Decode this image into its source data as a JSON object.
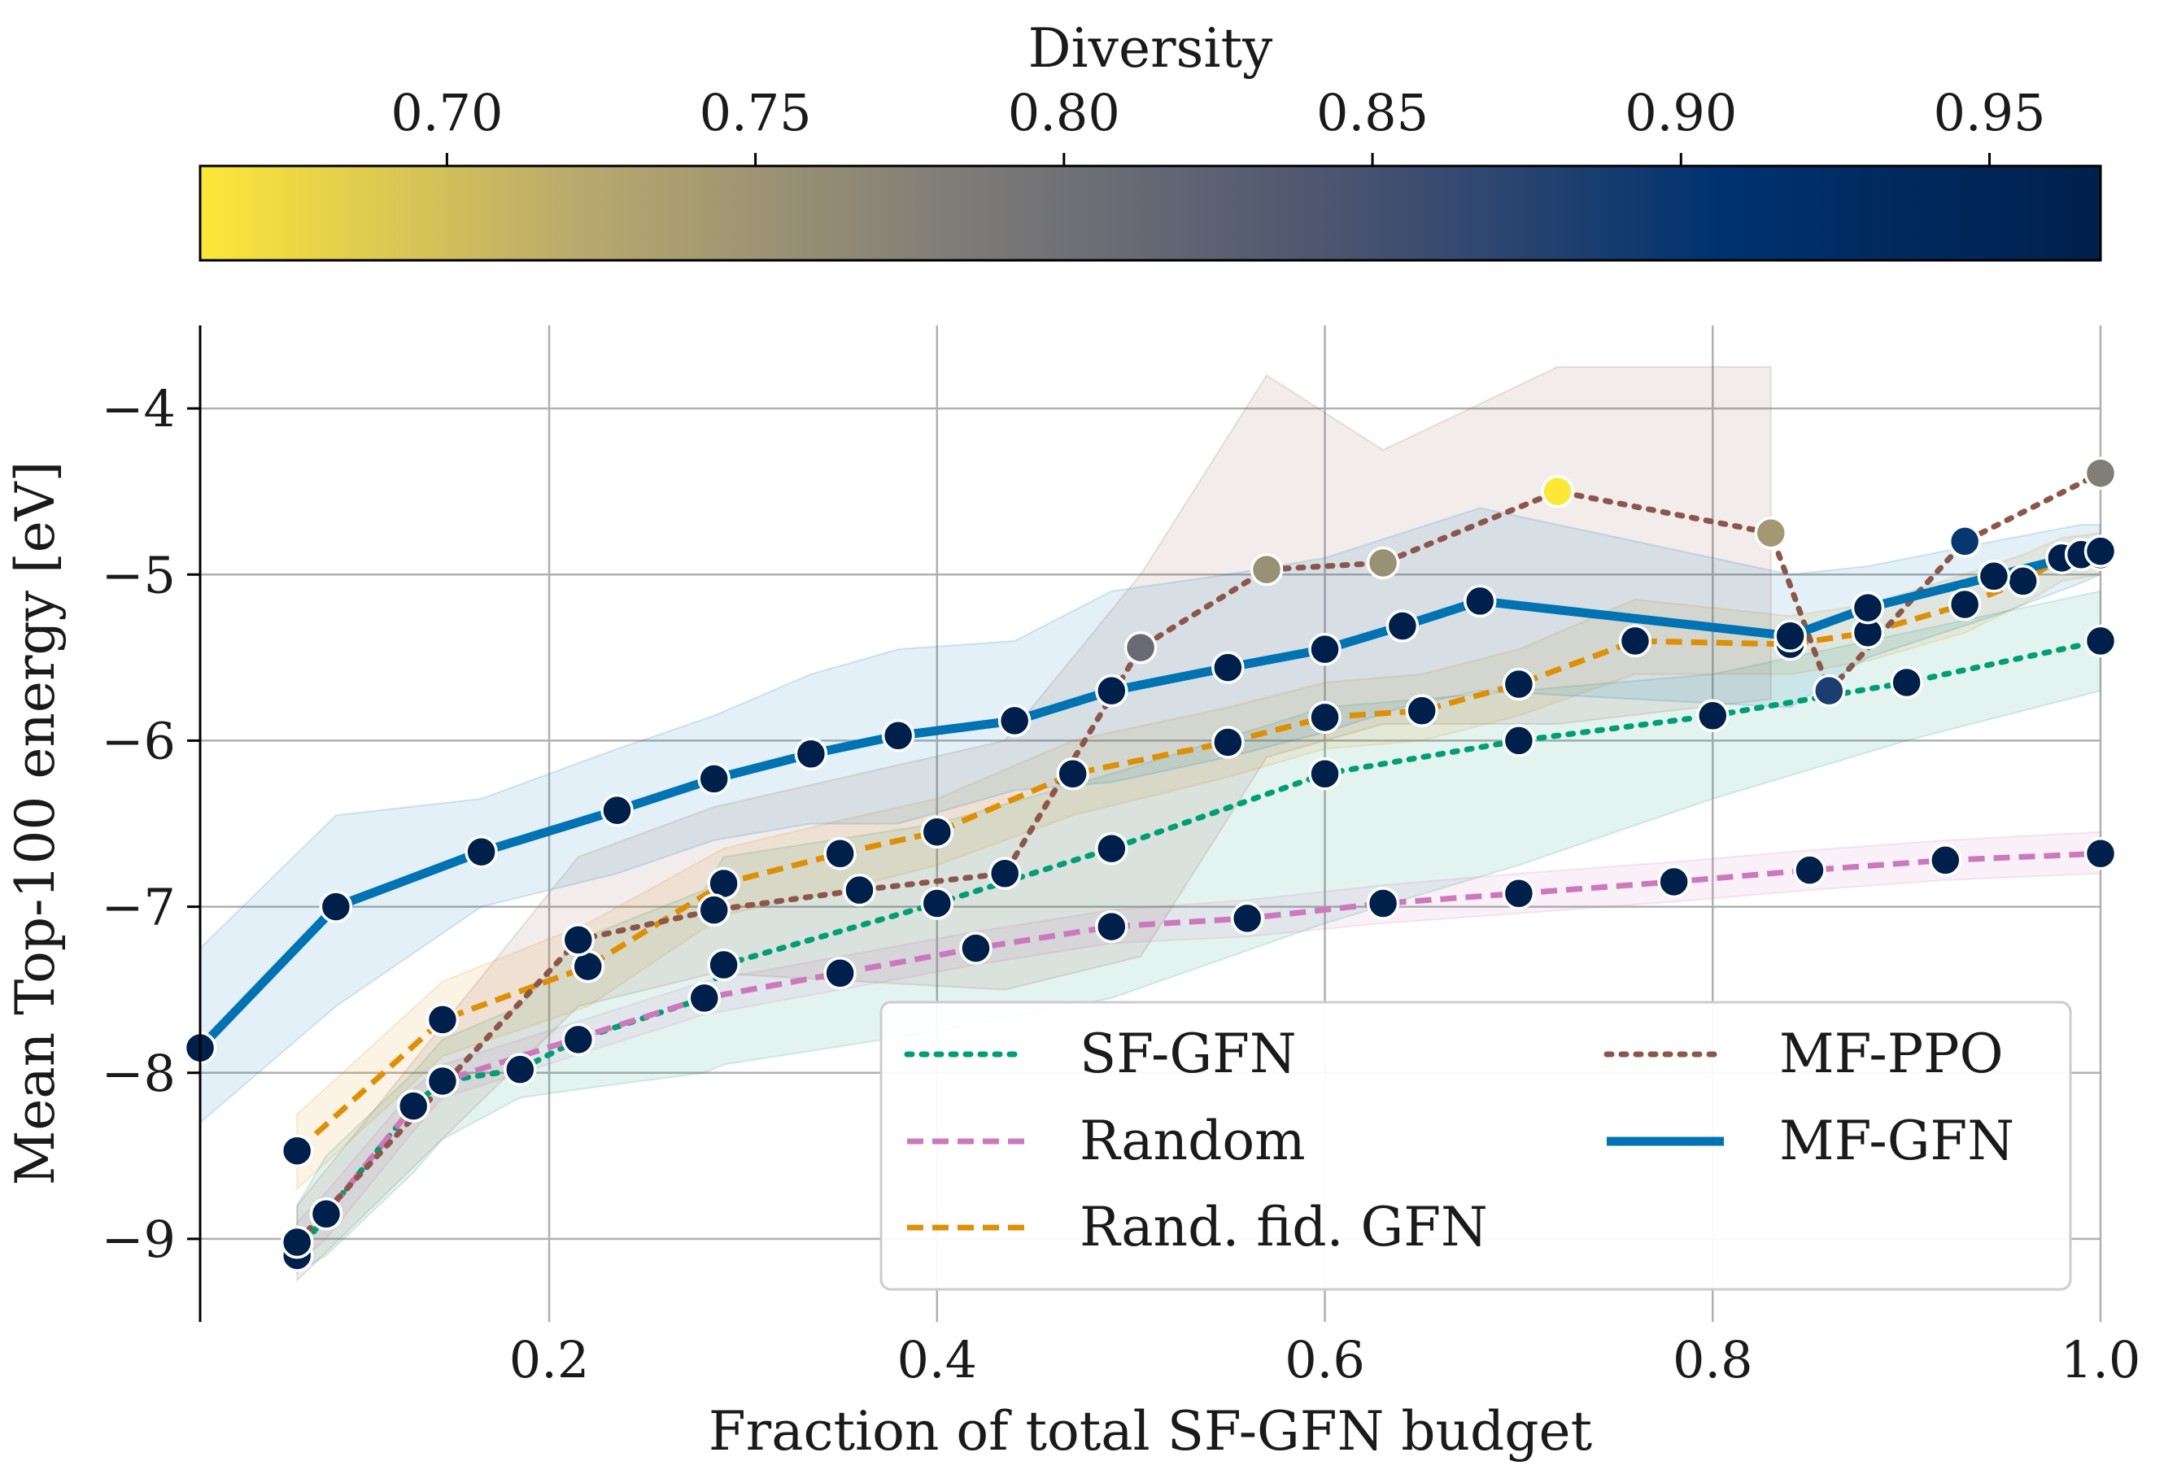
{
  "chart_data": {
    "type": "line",
    "xlabel": "Fraction of total SF-GFN budget",
    "ylabel": "Mean Top-100 energy [eV]",
    "xlim": [
      0.02,
      1.0
    ],
    "ylim": [
      -9.5,
      -3.5
    ],
    "grid": true,
    "x_ticks": [
      0.2,
      0.4,
      0.6,
      0.8,
      1.0
    ],
    "x_tick_labels": [
      "0.2",
      "0.4",
      "0.6",
      "0.8",
      "1.0"
    ],
    "y_ticks": [
      -9,
      -8,
      -7,
      -6,
      -5,
      -4
    ],
    "y_tick_labels": [
      "−9",
      "−8",
      "−7",
      "−6",
      "−5",
      "−4"
    ],
    "legend_position": "lower-right",
    "colorbar": {
      "title": "Diversity",
      "range": [
        0.66,
        0.968
      ],
      "ticks": [
        0.7,
        0.75,
        0.8,
        0.85,
        0.9,
        0.95
      ],
      "tick_labels": [
        "0.70",
        "0.75",
        "0.80",
        "0.85",
        "0.90",
        "0.95"
      ],
      "colormap": "cividis_reversed",
      "stops": [
        "#fde737",
        "#b9a96e",
        "#7e7c78",
        "#4b5470",
        "#00326f",
        "#00204c"
      ]
    },
    "series": [
      {
        "name": "SF-GFN",
        "color": "#029e73",
        "dash": "dot",
        "x": [
          0.07,
          0.085,
          0.13,
          0.145,
          0.185,
          0.215,
          0.28,
          0.29,
          0.4,
          0.49,
          0.6,
          0.7,
          0.8,
          0.9,
          1.0
        ],
        "y": [
          -9.1,
          -8.85,
          -8.2,
          -8.05,
          -7.98,
          -7.8,
          -7.55,
          -7.35,
          -6.98,
          -6.65,
          -6.2,
          -6.0,
          -5.85,
          -5.65,
          -5.4
        ],
        "band_upper": [
          -8.8,
          -8.5,
          -8.0,
          -7.8,
          -7.6,
          -7.2,
          -6.9,
          -6.7,
          -6.5,
          -6.2,
          -5.8,
          -5.7,
          -5.6,
          -5.35,
          -5.1
        ],
        "band_lower": [
          -9.2,
          -9.1,
          -8.6,
          -8.4,
          -8.15,
          -8.1,
          -8.0,
          -7.95,
          -7.75,
          -7.55,
          -7.1,
          -6.75,
          -6.35,
          -6.0,
          -5.7
        ],
        "diversity": [
          0.968,
          0.968,
          0.968,
          0.968,
          0.968,
          0.968,
          0.968,
          0.968,
          0.968,
          0.968,
          0.968,
          0.968,
          0.968,
          0.968,
          0.968
        ]
      },
      {
        "name": "Random",
        "color": "#cc78bc",
        "dash": "dash",
        "x": [
          0.07,
          0.085,
          0.13,
          0.145,
          0.28,
          0.35,
          0.42,
          0.49,
          0.56,
          0.63,
          0.7,
          0.78,
          0.85,
          0.92,
          1.0
        ],
        "y": [
          -9.02,
          -8.85,
          -8.2,
          -8.05,
          -7.55,
          -7.4,
          -7.25,
          -7.12,
          -7.07,
          -6.98,
          -6.92,
          -6.85,
          -6.78,
          -6.72,
          -6.68
        ],
        "band_upper": [
          -8.9,
          -8.72,
          -8.1,
          -7.95,
          -7.45,
          -7.3,
          -7.15,
          -7.02,
          -6.96,
          -6.87,
          -6.8,
          -6.73,
          -6.66,
          -6.6,
          -6.55
        ],
        "band_lower": [
          -9.15,
          -9.0,
          -8.35,
          -8.15,
          -7.65,
          -7.5,
          -7.35,
          -7.22,
          -7.18,
          -7.1,
          -7.04,
          -6.97,
          -6.9,
          -6.84,
          -6.8
        ],
        "diversity": [
          0.968,
          0.968,
          0.968,
          0.968,
          0.968,
          0.968,
          0.968,
          0.968,
          0.968,
          0.968,
          0.968,
          0.968,
          0.968,
          0.968,
          0.968
        ]
      },
      {
        "name": "Rand. fid. GFN",
        "color": "#de8f05",
        "dash": "dash",
        "x": [
          0.07,
          0.145,
          0.22,
          0.29,
          0.35,
          0.4,
          0.47,
          0.55,
          0.6,
          0.65,
          0.7,
          0.76,
          0.84,
          0.88,
          0.93,
          0.96,
          0.98,
          1.0
        ],
        "y": [
          -8.47,
          -7.68,
          -7.36,
          -6.86,
          -6.68,
          -6.55,
          -6.2,
          -6.01,
          -5.86,
          -5.82,
          -5.66,
          -5.4,
          -5.42,
          -5.35,
          -5.18,
          -5.04,
          -4.9,
          -4.88
        ],
        "band_upper": [
          -8.25,
          -7.45,
          -7.1,
          -6.65,
          -6.48,
          -6.35,
          -6.0,
          -5.8,
          -5.65,
          -5.6,
          -5.45,
          -5.15,
          -5.25,
          -5.18,
          -5.0,
          -4.88,
          -4.78,
          -4.75
        ],
        "band_lower": [
          -8.7,
          -7.9,
          -7.6,
          -7.05,
          -6.9,
          -6.75,
          -6.45,
          -6.22,
          -6.05,
          -6.0,
          -5.85,
          -5.6,
          -5.6,
          -5.52,
          -5.35,
          -5.18,
          -5.04,
          -5.0
        ],
        "diversity": [
          0.968,
          0.968,
          0.968,
          0.968,
          0.968,
          0.968,
          0.968,
          0.968,
          0.968,
          0.968,
          0.968,
          0.968,
          0.968,
          0.968,
          0.968,
          0.968,
          0.968,
          0.968
        ]
      },
      {
        "name": "MF-PPO",
        "color": "#8c564b",
        "dash": "dot",
        "x": [
          0.07,
          0.215,
          0.285,
          0.36,
          0.435,
          0.505,
          0.57,
          0.63,
          0.72,
          0.83,
          0.86,
          0.93,
          1.0
        ],
        "y": [
          -9.02,
          -7.2,
          -7.02,
          -6.9,
          -6.8,
          -5.44,
          -4.97,
          -4.93,
          -4.5,
          -4.75,
          -5.7,
          -4.8,
          -4.39
        ],
        "band_upper": [
          -8.8,
          -6.7,
          -6.4,
          -6.2,
          -6.0,
          -5.0,
          -3.8,
          -4.25,
          -3.75,
          -3.75,
          null,
          null,
          null
        ],
        "band_lower": [
          -9.25,
          -7.6,
          -7.4,
          -7.45,
          -7.5,
          -7.3,
          -6.1,
          -5.9,
          -5.9,
          -5.75,
          null,
          null,
          null
        ],
        "diversity": [
          0.968,
          0.968,
          0.968,
          0.968,
          0.968,
          0.81,
          0.755,
          0.755,
          0.66,
          0.745,
          0.885,
          0.9,
          0.78
        ]
      },
      {
        "name": "MF-GFN",
        "color": "#0173b2",
        "dash": "solid",
        "x": [
          0.02,
          0.09,
          0.165,
          0.235,
          0.285,
          0.335,
          0.38,
          0.44,
          0.49,
          0.55,
          0.6,
          0.64,
          0.68,
          0.84,
          0.88,
          0.945,
          0.99,
          1.0
        ],
        "y": [
          -7.85,
          -7.0,
          -6.67,
          -6.42,
          -6.23,
          -6.08,
          -5.97,
          -5.88,
          -5.7,
          -5.56,
          -5.45,
          -5.31,
          -5.16,
          -5.37,
          -5.2,
          -5.01,
          -4.88,
          -4.86
        ],
        "band_upper": [
          -7.25,
          -6.45,
          -6.35,
          -6.05,
          -5.85,
          -5.6,
          -5.45,
          -5.4,
          -5.1,
          -5.0,
          -4.9,
          -4.75,
          -4.6,
          -5.0,
          -4.95,
          -4.8,
          -4.7,
          -4.7
        ],
        "band_lower": [
          -8.3,
          -7.6,
          -7.0,
          -6.8,
          -6.6,
          -6.5,
          -6.5,
          -6.3,
          -6.25,
          -6.1,
          -5.95,
          -5.8,
          -5.7,
          -5.8,
          -5.5,
          -5.25,
          -5.05,
          -5.0
        ],
        "diversity": [
          0.968,
          0.968,
          0.968,
          0.968,
          0.968,
          0.968,
          0.968,
          0.968,
          0.968,
          0.968,
          0.968,
          0.968,
          0.968,
          0.968,
          0.968,
          0.968,
          0.968,
          0.968
        ]
      }
    ]
  }
}
